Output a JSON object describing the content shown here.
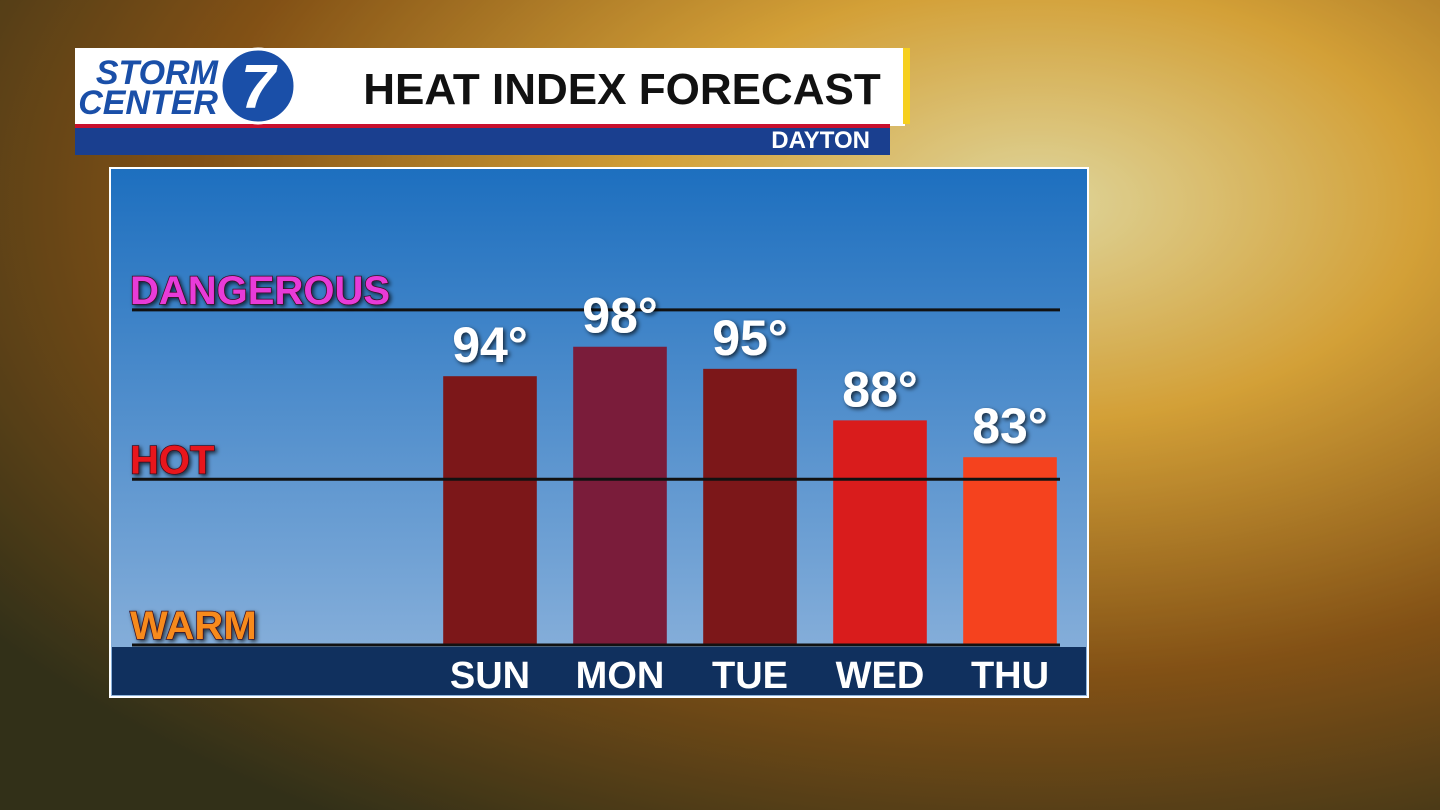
{
  "branding": {
    "line1": "STORM",
    "line2": "CENTER",
    "number": "7"
  },
  "chart_data": {
    "type": "bar",
    "title": "HEAT INDEX FORECAST",
    "subtitle": "DAYTON",
    "categories": [
      "SUN",
      "MON",
      "TUE",
      "WED",
      "THU"
    ],
    "values": [
      94,
      98,
      95,
      88,
      83
    ],
    "value_labels": [
      "94°",
      "98°",
      "95°",
      "88°",
      "83°"
    ],
    "colors": [
      "#7c1719",
      "#7a1c3a",
      "#7c1719",
      "#d91c1c",
      "#f5421e"
    ],
    "ylim": [
      57.5,
      122
    ],
    "yticks": [
      {
        "value": 57.5,
        "label": "WARM"
      },
      {
        "value": 80,
        "label": "HOT"
      },
      {
        "value": 103,
        "label": "DANGEROUS"
      }
    ],
    "ytick_colors": [
      "#f78a1e",
      "#e8141c",
      "#e83ad8"
    ],
    "grid": true
  }
}
